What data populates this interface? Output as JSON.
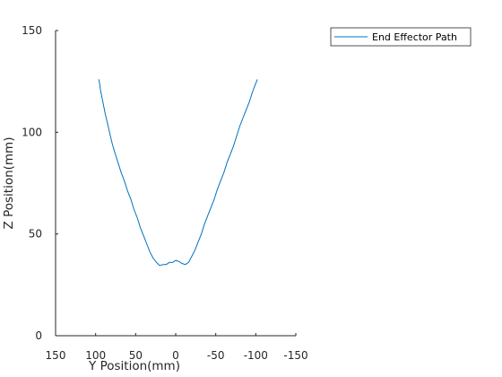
{
  "chart_data": {
    "type": "line",
    "xlabel": "Y Position(mm)",
    "ylabel": "Z Position(mm)",
    "xlim": [
      150,
      -150
    ],
    "ylim": [
      0,
      150
    ],
    "x_reversed": true,
    "x_ticks": [
      150,
      100,
      50,
      0,
      -50,
      -100,
      -150
    ],
    "x_tick_labels": [
      "150",
      "100",
      "50",
      "0",
      "-50",
      "-100",
      "-150"
    ],
    "y_ticks": [
      0,
      50,
      100,
      150
    ],
    "y_tick_labels": [
      "0",
      "50",
      "100",
      "150"
    ],
    "grid": false,
    "legend_position": "top-right-outside",
    "series": [
      {
        "name": "End Effector Path",
        "color": "#0072BD",
        "points": [
          [
            96,
            126
          ],
          [
            95,
            124
          ],
          [
            94,
            121
          ],
          [
            92,
            117
          ],
          [
            90,
            113
          ],
          [
            88,
            109
          ],
          [
            85,
            104
          ],
          [
            82,
            99
          ],
          [
            79,
            94
          ],
          [
            76,
            90
          ],
          [
            72,
            85
          ],
          [
            68,
            80
          ],
          [
            64,
            76
          ],
          [
            60,
            71
          ],
          [
            56,
            67
          ],
          [
            52,
            62
          ],
          [
            48,
            58
          ],
          [
            44,
            53
          ],
          [
            40,
            49
          ],
          [
            36,
            45
          ],
          [
            32,
            41
          ],
          [
            28,
            38
          ],
          [
            24,
            36
          ],
          [
            20,
            34.5
          ],
          [
            16,
            35
          ],
          [
            12,
            35
          ],
          [
            8,
            36
          ],
          [
            4,
            36
          ],
          [
            0,
            37
          ],
          [
            -4,
            36.5
          ],
          [
            -8,
            35.5
          ],
          [
            -12,
            35
          ],
          [
            -16,
            36
          ],
          [
            -20,
            39
          ],
          [
            -24,
            42
          ],
          [
            -28,
            46
          ],
          [
            -32,
            50
          ],
          [
            -36,
            55
          ],
          [
            -40,
            59
          ],
          [
            -44,
            63
          ],
          [
            -48,
            67
          ],
          [
            -52,
            72
          ],
          [
            -56,
            76
          ],
          [
            -60,
            80
          ],
          [
            -64,
            85
          ],
          [
            -68,
            89
          ],
          [
            -72,
            93
          ],
          [
            -76,
            98
          ],
          [
            -80,
            103
          ],
          [
            -84,
            107
          ],
          [
            -88,
            111
          ],
          [
            -92,
            115
          ],
          [
            -96,
            120
          ],
          [
            -100,
            124
          ],
          [
            -102,
            126
          ]
        ]
      }
    ]
  }
}
